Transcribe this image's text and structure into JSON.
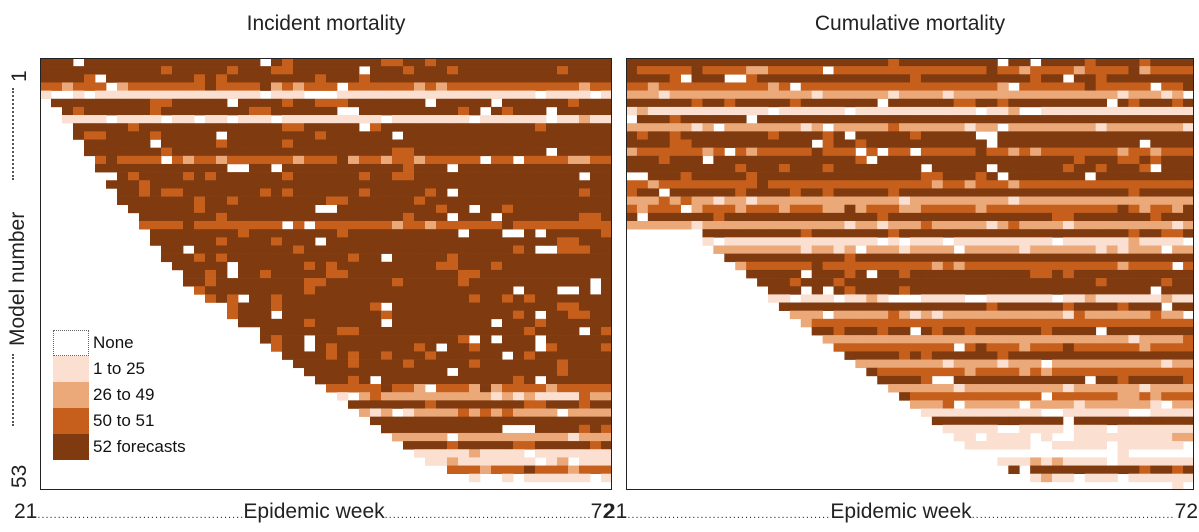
{
  "titles": {
    "left": "Incident mortality",
    "right": "Cumulative mortality"
  },
  "y_axis": {
    "label": "Model number",
    "top": "1",
    "bottom": "53"
  },
  "x_axis": {
    "start": "21",
    "label": "Epidemic week",
    "end": "72"
  },
  "legend": [
    {
      "label": "None",
      "color": "#ffffff"
    },
    {
      "label": "1 to 25",
      "color": "#fbe0d2"
    },
    {
      "label": "26 to 49",
      "color": "#eba879"
    },
    {
      "label": "50 to 51",
      "color": "#c65f1c"
    },
    {
      "label": "52 forecasts",
      "color": "#7f3a0f"
    }
  ],
  "chart_data": [
    {
      "type": "heatmap",
      "title": "Incident mortality",
      "xlabel": "Epidemic week",
      "ylabel": "Model number",
      "x_range": [
        21,
        72
      ],
      "y_range": [
        1,
        53
      ],
      "categories": [
        "None",
        "1 to 25",
        "26 to 49",
        "50 to 51",
        "52 forecasts"
      ],
      "rows": [
        {
          "start": 21,
          "end": 72,
          "dominant": "52 forecasts"
        },
        {
          "start": 21,
          "end": 72,
          "dominant": "52 forecasts"
        },
        {
          "start": 21,
          "end": 72,
          "dominant": "52 forecasts"
        },
        {
          "start": 21,
          "end": 72,
          "dominant": "50 to 51"
        },
        {
          "start": 21,
          "end": 72,
          "dominant": "1 to 25"
        },
        {
          "start": 22,
          "end": 72,
          "dominant": "52 forecasts"
        },
        {
          "start": 23,
          "end": 72,
          "dominant": "52 forecasts"
        },
        {
          "start": 23,
          "end": 72,
          "dominant": "1 to 25"
        },
        {
          "start": 24,
          "end": 72,
          "dominant": "52 forecasts"
        },
        {
          "start": 24,
          "end": 72,
          "dominant": "52 forecasts"
        },
        {
          "start": 25,
          "end": 72,
          "dominant": "52 forecasts"
        },
        {
          "start": 25,
          "end": 72,
          "dominant": "52 forecasts"
        },
        {
          "start": 26,
          "end": 72,
          "dominant": "50 to 51"
        },
        {
          "start": 26,
          "end": 72,
          "dominant": "52 forecasts"
        },
        {
          "start": 27,
          "end": 72,
          "dominant": "52 forecasts"
        },
        {
          "start": 27,
          "end": 72,
          "dominant": "52 forecasts"
        },
        {
          "start": 28,
          "end": 72,
          "dominant": "52 forecasts"
        },
        {
          "start": 28,
          "end": 72,
          "dominant": "52 forecasts"
        },
        {
          "start": 29,
          "end": 72,
          "dominant": "52 forecasts"
        },
        {
          "start": 30,
          "end": 72,
          "dominant": "52 forecasts"
        },
        {
          "start": 30,
          "end": 72,
          "dominant": "50 to 51"
        },
        {
          "start": 31,
          "end": 72,
          "dominant": "52 forecasts"
        },
        {
          "start": 31,
          "end": 72,
          "dominant": "52 forecasts"
        },
        {
          "start": 32,
          "end": 72,
          "dominant": "52 forecasts"
        },
        {
          "start": 32,
          "end": 72,
          "dominant": "52 forecasts"
        },
        {
          "start": 33,
          "end": 72,
          "dominant": "52 forecasts"
        },
        {
          "start": 34,
          "end": 72,
          "dominant": "52 forecasts"
        },
        {
          "start": 34,
          "end": 72,
          "dominant": "52 forecasts"
        },
        {
          "start": 35,
          "end": 72,
          "dominant": "52 forecasts"
        },
        {
          "start": 36,
          "end": 72,
          "dominant": "52 forecasts"
        },
        {
          "start": 37,
          "end": 72,
          "dominant": "52 forecasts"
        },
        {
          "start": 38,
          "end": 72,
          "dominant": "52 forecasts"
        },
        {
          "start": 39,
          "end": 72,
          "dominant": "52 forecasts"
        },
        {
          "start": 40,
          "end": 72,
          "dominant": "52 forecasts"
        },
        {
          "start": 41,
          "end": 72,
          "dominant": "52 forecasts"
        },
        {
          "start": 42,
          "end": 72,
          "dominant": "52 forecasts"
        },
        {
          "start": 43,
          "end": 72,
          "dominant": "52 forecasts"
        },
        {
          "start": 44,
          "end": 72,
          "dominant": "52 forecasts"
        },
        {
          "start": 45,
          "end": 72,
          "dominant": "52 forecasts"
        },
        {
          "start": 46,
          "end": 72,
          "dominant": "52 forecasts"
        },
        {
          "start": 47,
          "end": 72,
          "dominant": "50 to 51"
        },
        {
          "start": 48,
          "end": 72,
          "dominant": "26 to 49"
        },
        {
          "start": 49,
          "end": 72,
          "dominant": "52 forecasts"
        },
        {
          "start": 50,
          "end": 72,
          "dominant": "26 to 49"
        },
        {
          "start": 51,
          "end": 72,
          "dominant": "52 forecasts"
        },
        {
          "start": 52,
          "end": 72,
          "dominant": "52 forecasts"
        },
        {
          "start": 53,
          "end": 72,
          "dominant": "26 to 49"
        },
        {
          "start": 54,
          "end": 72,
          "dominant": "52 forecasts"
        },
        {
          "start": 55,
          "end": 72,
          "dominant": "1 to 25"
        },
        {
          "start": 56,
          "end": 72,
          "dominant": "1 to 25"
        },
        {
          "start": 58,
          "end": 72,
          "dominant": "50 to 51"
        },
        {
          "start": 60,
          "end": 72,
          "dominant": "1 to 25"
        },
        {
          "start": 62,
          "end": 72,
          "dominant": "None"
        }
      ]
    },
    {
      "type": "heatmap",
      "title": "Cumulative mortality",
      "xlabel": "Epidemic week",
      "ylabel": "Model number",
      "x_range": [
        21,
        72
      ],
      "y_range": [
        1,
        53
      ],
      "categories": [
        "None",
        "1 to 25",
        "26 to 49",
        "50 to 51",
        "52 forecasts"
      ],
      "rows": [
        {
          "start": 21,
          "end": 72,
          "dominant": "52 forecasts"
        },
        {
          "start": 21,
          "end": 72,
          "dominant": "50 to 51"
        },
        {
          "start": 21,
          "end": 72,
          "dominant": "52 forecasts"
        },
        {
          "start": 21,
          "end": 72,
          "dominant": "50 to 51"
        },
        {
          "start": 21,
          "end": 72,
          "dominant": "26 to 49"
        },
        {
          "start": 21,
          "end": 72,
          "dominant": "52 forecasts"
        },
        {
          "start": 21,
          "end": 72,
          "dominant": "1 to 25"
        },
        {
          "start": 21,
          "end": 72,
          "dominant": "52 forecasts"
        },
        {
          "start": 21,
          "end": 72,
          "dominant": "26 to 49"
        },
        {
          "start": 21,
          "end": 72,
          "dominant": "52 forecasts"
        },
        {
          "start": 21,
          "end": 72,
          "dominant": "52 forecasts"
        },
        {
          "start": 21,
          "end": 72,
          "dominant": "50 to 51"
        },
        {
          "start": 21,
          "end": 72,
          "dominant": "52 forecasts"
        },
        {
          "start": 21,
          "end": 72,
          "dominant": "52 forecasts"
        },
        {
          "start": 21,
          "end": 72,
          "dominant": "52 forecasts"
        },
        {
          "start": 21,
          "end": 72,
          "dominant": "50 to 51"
        },
        {
          "start": 21,
          "end": 72,
          "dominant": "52 forecasts"
        },
        {
          "start": 21,
          "end": 72,
          "dominant": "26 to 49"
        },
        {
          "start": 21,
          "end": 72,
          "dominant": "50 to 51"
        },
        {
          "start": 21,
          "end": 72,
          "dominant": "52 forecasts"
        },
        {
          "start": 21,
          "end": 72,
          "dominant": "26 to 49"
        },
        {
          "start": 28,
          "end": 72,
          "dominant": "52 forecasts"
        },
        {
          "start": 28,
          "end": 72,
          "dominant": "1 to 25"
        },
        {
          "start": 29,
          "end": 72,
          "dominant": "26 to 49"
        },
        {
          "start": 30,
          "end": 72,
          "dominant": "52 forecasts"
        },
        {
          "start": 31,
          "end": 72,
          "dominant": "50 to 51"
        },
        {
          "start": 32,
          "end": 72,
          "dominant": "52 forecasts"
        },
        {
          "start": 33,
          "end": 72,
          "dominant": "52 forecasts"
        },
        {
          "start": 34,
          "end": 72,
          "dominant": "52 forecasts"
        },
        {
          "start": 34,
          "end": 72,
          "dominant": "1 to 25"
        },
        {
          "start": 35,
          "end": 72,
          "dominant": "52 forecasts"
        },
        {
          "start": 36,
          "end": 72,
          "dominant": "26 to 49"
        },
        {
          "start": 37,
          "end": 72,
          "dominant": "50 to 51"
        },
        {
          "start": 38,
          "end": 72,
          "dominant": "52 forecasts"
        },
        {
          "start": 39,
          "end": 72,
          "dominant": "26 to 49"
        },
        {
          "start": 40,
          "end": 72,
          "dominant": "50 to 51"
        },
        {
          "start": 41,
          "end": 72,
          "dominant": "52 forecasts"
        },
        {
          "start": 42,
          "end": 72,
          "dominant": "26 to 49"
        },
        {
          "start": 43,
          "end": 72,
          "dominant": "50 to 51"
        },
        {
          "start": 44,
          "end": 72,
          "dominant": "52 forecasts"
        },
        {
          "start": 45,
          "end": 72,
          "dominant": "26 to 49"
        },
        {
          "start": 46,
          "end": 72,
          "dominant": "50 to 51"
        },
        {
          "start": 47,
          "end": 72,
          "dominant": "26 to 49"
        },
        {
          "start": 48,
          "end": 72,
          "dominant": "1 to 25"
        },
        {
          "start": 49,
          "end": 72,
          "dominant": "52 forecasts"
        },
        {
          "start": 50,
          "end": 72,
          "dominant": "1 to 25"
        },
        {
          "start": 51,
          "end": 72,
          "dominant": "1 to 25"
        },
        {
          "start": 52,
          "end": 72,
          "dominant": "1 to 25"
        },
        {
          "start": 53,
          "end": 72,
          "dominant": "None"
        },
        {
          "start": 54,
          "end": 72,
          "dominant": "1 to 25"
        },
        {
          "start": 56,
          "end": 72,
          "dominant": "52 forecasts"
        },
        {
          "start": 58,
          "end": 72,
          "dominant": "1 to 25"
        },
        {
          "start": 60,
          "end": 72,
          "dominant": "None"
        }
      ]
    }
  ]
}
